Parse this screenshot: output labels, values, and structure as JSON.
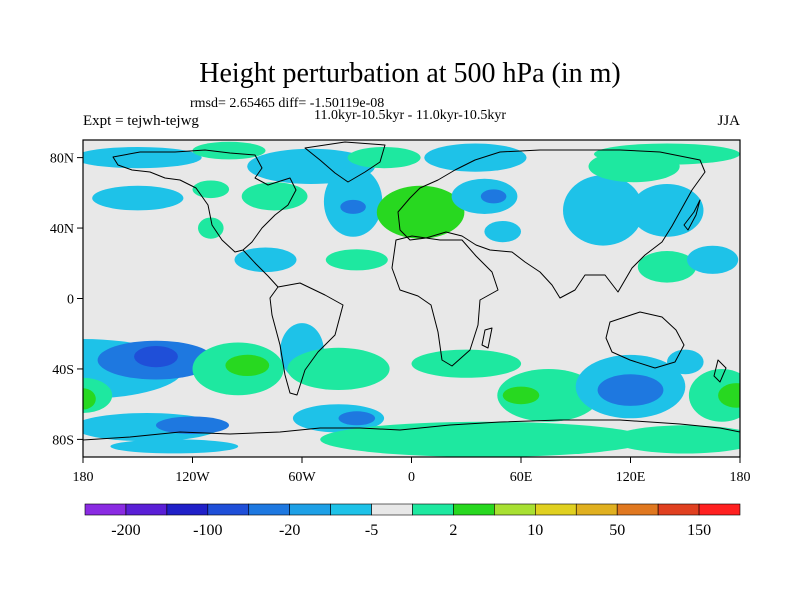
{
  "chart_data": {
    "type": "heatmap",
    "title": "Height perturbation at 500 hPa (in m)",
    "stats": "rmsd= 2.65465 diff= -1.50119e-08",
    "period": "11.0kyr-10.5kyr - 11.0kyr-10.5kyr",
    "left_label": "Expt = tejwh-tejwg",
    "right_label": "JJA",
    "lon_range": [
      -180,
      180
    ],
    "lat_range": [
      -90,
      90
    ],
    "x_ticks": [
      {
        "lon": -180,
        "label": "180"
      },
      {
        "lon": -120,
        "label": "120W"
      },
      {
        "lon": -60,
        "label": "60W"
      },
      {
        "lon": 0,
        "label": "0"
      },
      {
        "lon": 60,
        "label": "60E"
      },
      {
        "lon": 120,
        "label": "120E"
      },
      {
        "lon": 180,
        "label": "180"
      }
    ],
    "y_ticks": [
      {
        "lat": 80,
        "label": "80N"
      },
      {
        "lat": 40,
        "label": "40N"
      },
      {
        "lat": 0,
        "label": "0"
      },
      {
        "lat": -40,
        "label": "40S"
      },
      {
        "lat": -80,
        "label": "80S"
      }
    ],
    "colorbar": {
      "colors": [
        "#8a2be2",
        "#5a1fd6",
        "#2020c8",
        "#1f4fd8",
        "#1e78e0",
        "#1ea0e6",
        "#1ec2e8",
        "#e8e8e8",
        "#1ee8a0",
        "#28d820",
        "#a8e032",
        "#e0d020",
        "#e0b020",
        "#e07820",
        "#e04020",
        "#ff2020"
      ],
      "labels": [
        {
          "after_index": 0,
          "text": "-200"
        },
        {
          "after_index": 2,
          "text": "-100"
        },
        {
          "after_index": 4,
          "text": "-20"
        },
        {
          "after_index": 6,
          "text": "-5"
        },
        {
          "after_index": 8,
          "text": "2"
        },
        {
          "after_index": 10,
          "text": "10"
        },
        {
          "after_index": 12,
          "text": "50"
        },
        {
          "after_index": 14,
          "text": "150"
        }
      ]
    },
    "anomalies": [
      {
        "lon": -150,
        "lat": 80,
        "rlon": 35,
        "rlat": 6,
        "level": -5
      },
      {
        "lon": -100,
        "lat": 84,
        "rlon": 20,
        "rlat": 5,
        "level": 2
      },
      {
        "lon": -55,
        "lat": 75,
        "rlon": 35,
        "rlat": 10,
        "level": -5
      },
      {
        "lon": -15,
        "lat": 80,
        "rlon": 20,
        "rlat": 6,
        "level": 2
      },
      {
        "lon": 35,
        "lat": 80,
        "rlon": 28,
        "rlat": 8,
        "level": -5
      },
      {
        "lon": 140,
        "lat": 82,
        "rlon": 40,
        "rlat": 6,
        "level": 2
      },
      {
        "lon": -150,
        "lat": 57,
        "rlon": 25,
        "rlat": 7,
        "level": -5
      },
      {
        "lon": -110,
        "lat": 62,
        "rlon": 10,
        "rlat": 5,
        "level": 2
      },
      {
        "lon": -75,
        "lat": 58,
        "rlon": 18,
        "rlat": 8,
        "level": 2
      },
      {
        "lon": -32,
        "lat": 55,
        "rlon": 16,
        "rlat": 20,
        "level": -5
      },
      {
        "lon": -32,
        "lat": 52,
        "rlon": 7,
        "rlat": 4,
        "level": -20
      },
      {
        "lon": 0,
        "lat": 48,
        "rlon": 9,
        "rlat": 9,
        "level": 2
      },
      {
        "lon": 5,
        "lat": 49,
        "rlon": 24,
        "rlat": 15,
        "level": 10
      },
      {
        "lon": 40,
        "lat": 58,
        "rlon": 18,
        "rlat": 10,
        "level": -5
      },
      {
        "lon": 45,
        "lat": 58,
        "rlon": 7,
        "rlat": 4,
        "level": -20
      },
      {
        "lon": 105,
        "lat": 50,
        "rlon": 22,
        "rlat": 20,
        "level": -5
      },
      {
        "lon": 140,
        "lat": 50,
        "rlon": 20,
        "rlat": 15,
        "level": -5
      },
      {
        "lon": 122,
        "lat": 75,
        "rlon": 25,
        "rlat": 9,
        "level": 2
      },
      {
        "lon": -110,
        "lat": 40,
        "rlon": 7,
        "rlat": 6,
        "level": 2
      },
      {
        "lon": -80,
        "lat": 22,
        "rlon": 17,
        "rlat": 7,
        "level": -5
      },
      {
        "lon": -30,
        "lat": 22,
        "rlon": 17,
        "rlat": 6,
        "level": 2
      },
      {
        "lon": 50,
        "lat": 38,
        "rlon": 10,
        "rlat": 6,
        "level": -5
      },
      {
        "lon": 140,
        "lat": 18,
        "rlon": 16,
        "rlat": 9,
        "level": 2
      },
      {
        "lon": 165,
        "lat": 22,
        "rlon": 14,
        "rlat": 8,
        "level": -5
      },
      {
        "lon": -180,
        "lat": -40,
        "rlon": 55,
        "rlat": 17,
        "level": -5
      },
      {
        "lon": -140,
        "lat": -35,
        "rlon": 32,
        "rlat": 11,
        "level": -20
      },
      {
        "lon": -140,
        "lat": -33,
        "rlon": 12,
        "rlat": 6,
        "level": -100
      },
      {
        "lon": -95,
        "lat": -40,
        "rlon": 25,
        "rlat": 15,
        "level": 2
      },
      {
        "lon": -90,
        "lat": -38,
        "rlon": 12,
        "rlat": 6,
        "level": 10
      },
      {
        "lon": -60,
        "lat": -30,
        "rlon": 12,
        "rlat": 16,
        "level": -5
      },
      {
        "lon": -40,
        "lat": -40,
        "rlon": 28,
        "rlat": 12,
        "level": 2
      },
      {
        "lon": 30,
        "lat": -37,
        "rlon": 30,
        "rlat": 8,
        "level": 2
      },
      {
        "lon": 75,
        "lat": -55,
        "rlon": 28,
        "rlat": 15,
        "level": 2
      },
      {
        "lon": 60,
        "lat": -55,
        "rlon": 10,
        "rlat": 5,
        "level": 10
      },
      {
        "lon": 120,
        "lat": -50,
        "rlon": 30,
        "rlat": 18,
        "level": -5
      },
      {
        "lon": 120,
        "lat": -52,
        "rlon": 18,
        "rlat": 9,
        "level": -20
      },
      {
        "lon": 150,
        "lat": -36,
        "rlon": 10,
        "rlat": 7,
        "level": -5
      },
      {
        "lon": 170,
        "lat": -55,
        "rlon": 18,
        "rlat": 15,
        "level": 2
      },
      {
        "lon": 178,
        "lat": -55,
        "rlon": 10,
        "rlat": 7,
        "level": 10
      },
      {
        "lon": -180,
        "lat": -55,
        "rlon": 16,
        "rlat": 10,
        "level": 2
      },
      {
        "lon": -180,
        "lat": -57,
        "rlon": 7,
        "rlat": 6,
        "level": 10
      },
      {
        "lon": -145,
        "lat": -73,
        "rlon": 40,
        "rlat": 8,
        "level": -5
      },
      {
        "lon": -120,
        "lat": -72,
        "rlon": 20,
        "rlat": 5,
        "level": -20
      },
      {
        "lon": -40,
        "lat": -68,
        "rlon": 25,
        "rlat": 8,
        "level": -5
      },
      {
        "lon": -30,
        "lat": -68,
        "rlon": 10,
        "rlat": 4,
        "level": -20
      },
      {
        "lon": 40,
        "lat": -80,
        "rlon": 90,
        "rlat": 10,
        "level": 2
      },
      {
        "lon": 150,
        "lat": -80,
        "rlon": 40,
        "rlat": 8,
        "level": 2
      },
      {
        "lon": -130,
        "lat": -84,
        "rlon": 35,
        "rlat": 4,
        "level": -5
      }
    ]
  }
}
